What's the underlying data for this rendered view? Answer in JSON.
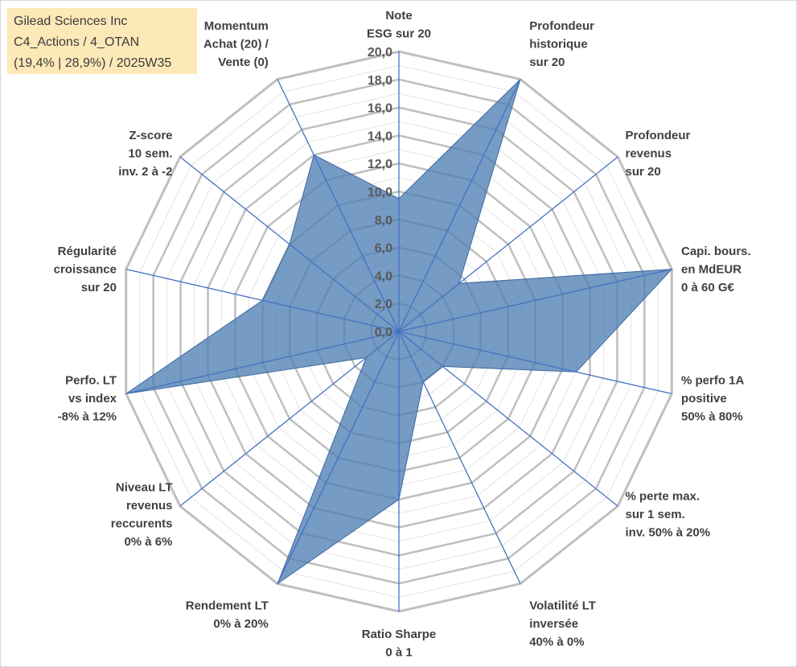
{
  "title_box": {
    "line1": "Gilead Sciences Inc",
    "line2": "C4_Actions / 4_OTAN",
    "line3": "(19,4% | 28,9%) / 2025W35"
  },
  "chart_data": {
    "type": "radar",
    "rlim": [
      0,
      20
    ],
    "ticks": [
      "0,0",
      "2,0",
      "4,0",
      "6,0",
      "8,0",
      "10,0",
      "12,0",
      "14,0",
      "16,0",
      "18,0",
      "20,0"
    ],
    "grid": true,
    "colors": {
      "fill": "#4f7fb4",
      "spokes": "#4472c4",
      "grid_major": "#bfbfbf",
      "grid_minor": "#e3e3e3"
    },
    "axes": [
      {
        "label": [
          "Note",
          "ESG sur 20"
        ],
        "value": 9.5
      },
      {
        "label": [
          "Profondeur",
          "historique",
          "sur 20"
        ],
        "value": 20
      },
      {
        "label": [
          "Profondeur",
          "revenus",
          "sur 20"
        ],
        "value": 5.5
      },
      {
        "label": [
          "Capi. bours.",
          "en MdEUR",
          "0 à 60 G€"
        ],
        "value": 20
      },
      {
        "label": [
          "% perfo 1A",
          "positive",
          "50% à 80%"
        ],
        "value": 13
      },
      {
        "label": [
          "% perte max.",
          "sur 1 sem.",
          "inv. 50% à 20%"
        ],
        "value": 4
      },
      {
        "label": [
          "Volatilité LT",
          "inversée",
          "40% à 0%"
        ],
        "value": 4
      },
      {
        "label": [
          "Ratio Sharpe",
          "0 à 1"
        ],
        "value": 12
      },
      {
        "label": [
          "Rendement LT",
          "0% à 20%"
        ],
        "value": 20
      },
      {
        "label": [
          "Niveau LT",
          "revenus",
          "reccurents",
          "0% à 6%"
        ],
        "value": 3
      },
      {
        "label": [
          "Perfo. LT",
          "vs index",
          "-8% à 12%"
        ],
        "value": 20
      },
      {
        "label": [
          "Régularité",
          "croissance",
          "sur 20"
        ],
        "value": 10
      },
      {
        "label": [
          "Z-score",
          "10 sem.",
          "inv. 2 à -2"
        ],
        "value": 10
      },
      {
        "label": [
          "Momentum",
          "Achat (20) /",
          "Vente (0)"
        ],
        "value": 14
      }
    ]
  }
}
